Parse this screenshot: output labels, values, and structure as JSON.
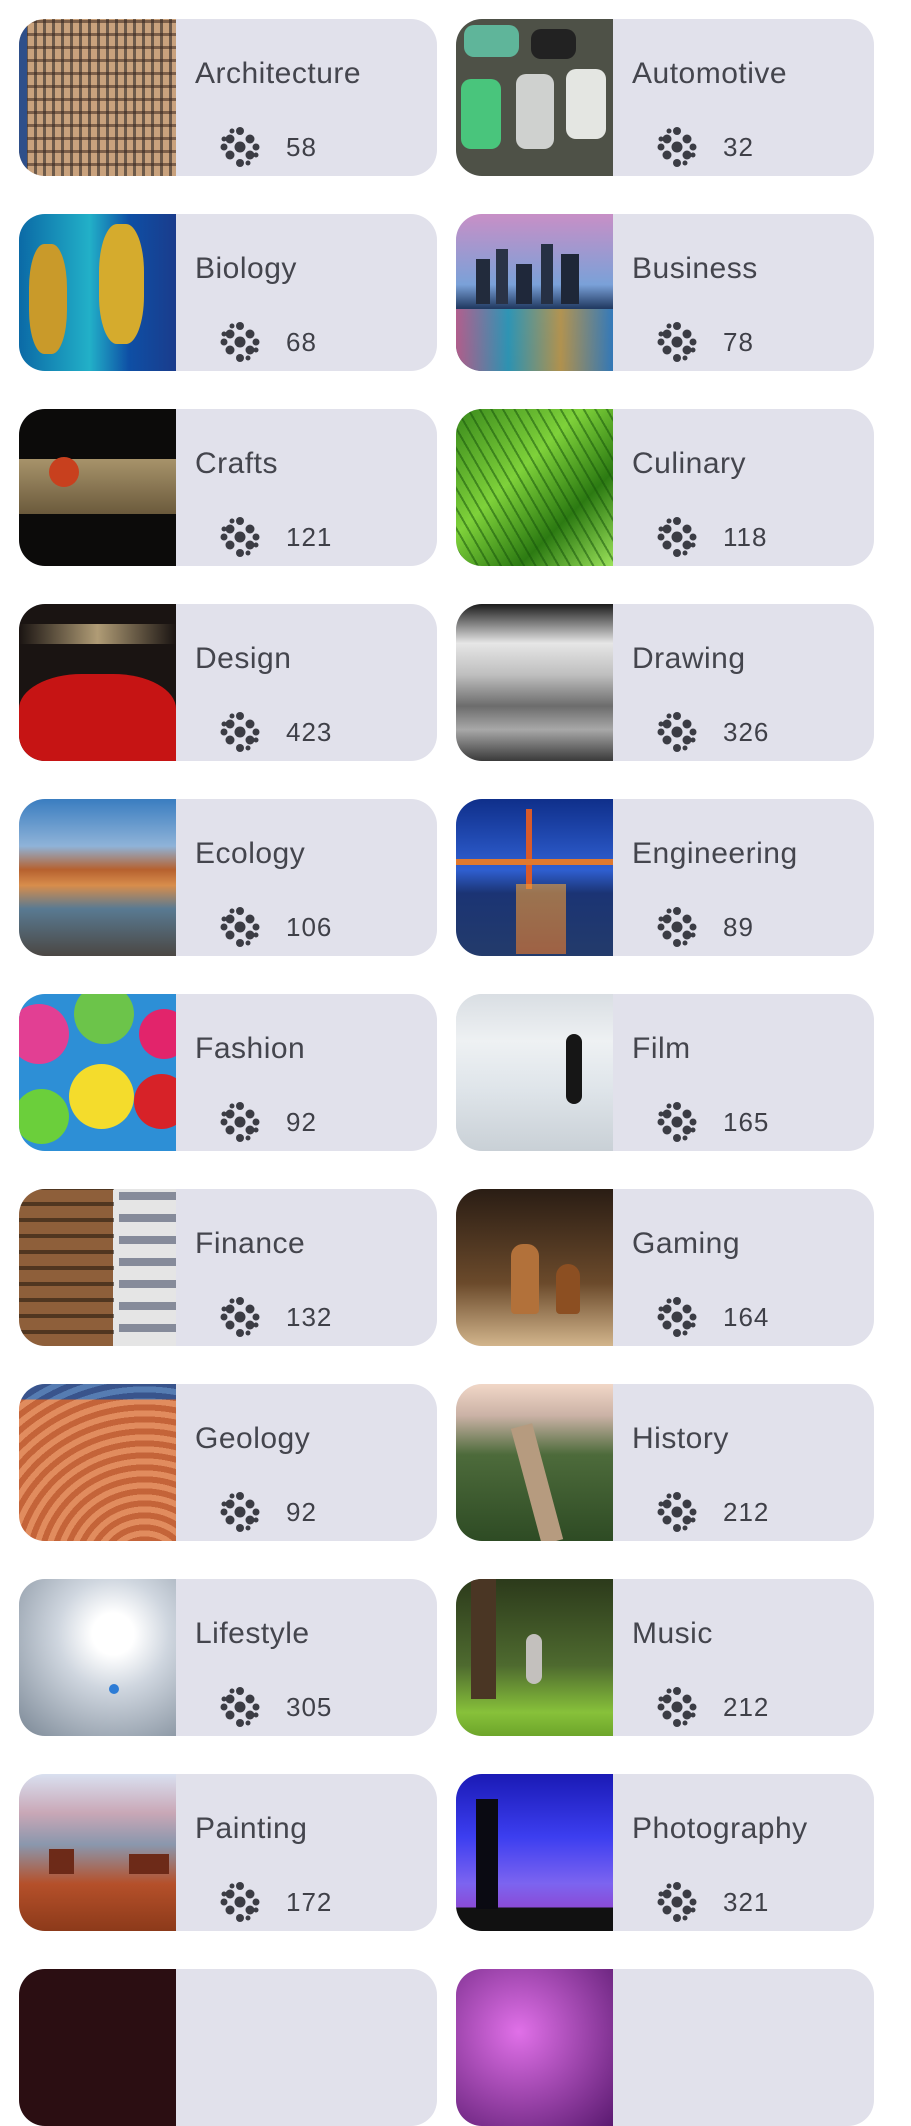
{
  "topics": [
    {
      "title": "Architecture",
      "count": "58",
      "icon": "topic-dots-icon",
      "image": "office-building-windows"
    },
    {
      "title": "Automotive",
      "count": "32",
      "icon": "topic-dots-icon",
      "image": "taxis-traffic"
    },
    {
      "title": "Biology",
      "count": "68",
      "icon": "topic-dots-icon",
      "image": "seahorses"
    },
    {
      "title": "Business",
      "count": "78",
      "icon": "topic-dots-icon",
      "image": "city-skyline-night"
    },
    {
      "title": "Crafts",
      "count": "121",
      "icon": "topic-dots-icon",
      "image": "bird-ornament-pipe"
    },
    {
      "title": "Culinary",
      "count": "118",
      "icon": "topic-dots-icon",
      "image": "green-grass-closeup"
    },
    {
      "title": "Design",
      "count": "423",
      "icon": "topic-dots-icon",
      "image": "red-car-light-trails"
    },
    {
      "title": "Drawing",
      "count": "326",
      "icon": "topic-dots-icon",
      "image": "black-white-canyon-clouds"
    },
    {
      "title": "Ecology",
      "count": "106",
      "icon": "topic-dots-icon",
      "image": "river-red-rocks"
    },
    {
      "title": "Engineering",
      "count": "89",
      "icon": "topic-dots-icon",
      "image": "golden-gate-bridge"
    },
    {
      "title": "Fashion",
      "count": "92",
      "icon": "topic-dots-icon",
      "image": "colorful-umbrellas"
    },
    {
      "title": "Film",
      "count": "165",
      "icon": "topic-dots-icon",
      "image": "person-salt-flat"
    },
    {
      "title": "Finance",
      "count": "132",
      "icon": "topic-dots-icon",
      "image": "buildings-facade"
    },
    {
      "title": "Gaming",
      "count": "164",
      "icon": "topic-dots-icon",
      "image": "chess-pieces"
    },
    {
      "title": "Geology",
      "count": "92",
      "icon": "topic-dots-icon",
      "image": "sandstone-waves"
    },
    {
      "title": "History",
      "count": "212",
      "icon": "topic-dots-icon",
      "image": "great-wall"
    },
    {
      "title": "Lifestyle",
      "count": "305",
      "icon": "topic-dots-icon",
      "image": "skier-snow-sunburst"
    },
    {
      "title": "Music",
      "count": "212",
      "icon": "topic-dots-icon",
      "image": "violinist-park"
    },
    {
      "title": "Painting",
      "count": "172",
      "icon": "topic-dots-icon",
      "image": "desert-mesas"
    },
    {
      "title": "Photography",
      "count": "321",
      "icon": "topic-dots-icon",
      "image": "photographer-silhouette"
    },
    {
      "title": "",
      "count": "",
      "icon": "",
      "image": "partial-dark-tile"
    },
    {
      "title": "",
      "count": "",
      "icon": "",
      "image": "partial-purple-tile"
    }
  ],
  "colors": {
    "card_bg": "#e1e1eb",
    "text": "#44454d",
    "icon": "#3b3c44"
  }
}
